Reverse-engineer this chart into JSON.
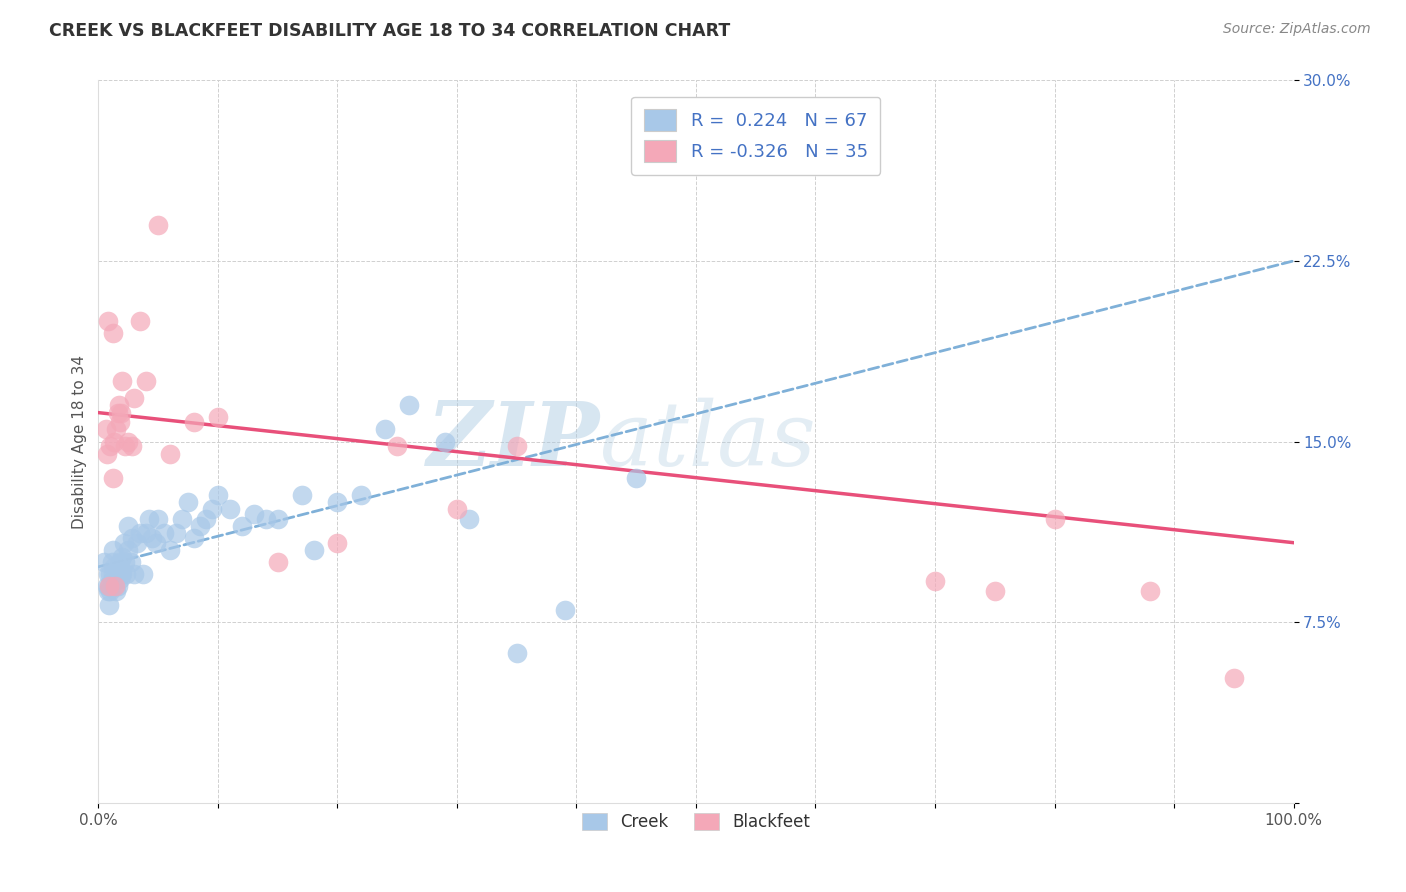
{
  "title": "CREEK VS BLACKFEET DISABILITY AGE 18 TO 34 CORRELATION CHART",
  "source": "Source: ZipAtlas.com",
  "ylabel": "Disability Age 18 to 34",
  "xlim": [
    0,
    1.0
  ],
  "ylim": [
    0,
    0.3
  ],
  "xticks": [
    0.0,
    0.1,
    0.2,
    0.3,
    0.4,
    0.5,
    0.6,
    0.7,
    0.8,
    0.9,
    1.0
  ],
  "xticklabels": [
    "0.0%",
    "",
    "",
    "",
    "",
    "",
    "",
    "",
    "",
    "",
    "100.0%"
  ],
  "yticks": [
    0.0,
    0.075,
    0.15,
    0.225,
    0.3
  ],
  "yticklabels": [
    "",
    "7.5%",
    "15.0%",
    "22.5%",
    "30.0%"
  ],
  "creek_color": "#a8c8e8",
  "blackfeet_color": "#f4a8b8",
  "creek_R": 0.224,
  "creek_N": 67,
  "blackfeet_R": -0.326,
  "blackfeet_N": 35,
  "legend_creek_label": "Creek",
  "legend_blackfeet_label": "Blackfeet",
  "watermark_zip": "ZIP",
  "watermark_atlas": "atlas",
  "background_color": "#ffffff",
  "grid_color": "#d0d0d0",
  "creek_line_color": "#7fb0d8",
  "blackfeet_line_color": "#e8507a",
  "title_color": "#333333",
  "source_color": "#888888",
  "ylabel_color": "#555555",
  "ytick_color": "#4472c4",
  "xtick_color": "#555555",
  "legend_label_color": "#4472c4",
  "creek_line_start_y": 0.098,
  "creek_line_end_y": 0.225,
  "blackfeet_line_start_y": 0.162,
  "blackfeet_line_end_y": 0.108,
  "creek_points_x": [
    0.005,
    0.007,
    0.008,
    0.008,
    0.009,
    0.009,
    0.01,
    0.01,
    0.011,
    0.011,
    0.012,
    0.012,
    0.013,
    0.013,
    0.014,
    0.015,
    0.015,
    0.016,
    0.016,
    0.017,
    0.018,
    0.018,
    0.019,
    0.02,
    0.02,
    0.021,
    0.022,
    0.023,
    0.025,
    0.025,
    0.027,
    0.028,
    0.03,
    0.032,
    0.035,
    0.037,
    0.04,
    0.042,
    0.045,
    0.048,
    0.05,
    0.055,
    0.06,
    0.065,
    0.07,
    0.075,
    0.08,
    0.085,
    0.09,
    0.095,
    0.1,
    0.11,
    0.12,
    0.13,
    0.14,
    0.15,
    0.17,
    0.18,
    0.2,
    0.22,
    0.24,
    0.26,
    0.29,
    0.31,
    0.35,
    0.39,
    0.45
  ],
  "creek_points_y": [
    0.1,
    0.09,
    0.088,
    0.095,
    0.082,
    0.09,
    0.088,
    0.095,
    0.092,
    0.1,
    0.095,
    0.105,
    0.093,
    0.098,
    0.092,
    0.088,
    0.095,
    0.09,
    0.096,
    0.098,
    0.093,
    0.1,
    0.095,
    0.095,
    0.102,
    0.108,
    0.1,
    0.095,
    0.105,
    0.115,
    0.1,
    0.11,
    0.095,
    0.108,
    0.112,
    0.095,
    0.112,
    0.118,
    0.11,
    0.108,
    0.118,
    0.112,
    0.105,
    0.112,
    0.118,
    0.125,
    0.11,
    0.115,
    0.118,
    0.122,
    0.128,
    0.122,
    0.115,
    0.12,
    0.118,
    0.118,
    0.128,
    0.105,
    0.125,
    0.128,
    0.155,
    0.165,
    0.15,
    0.118,
    0.062,
    0.08,
    0.135
  ],
  "blackfeet_points_x": [
    0.006,
    0.007,
    0.008,
    0.009,
    0.01,
    0.012,
    0.012,
    0.013,
    0.014,
    0.015,
    0.016,
    0.017,
    0.018,
    0.019,
    0.02,
    0.022,
    0.025,
    0.028,
    0.03,
    0.035,
    0.04,
    0.05,
    0.06,
    0.08,
    0.1,
    0.15,
    0.2,
    0.25,
    0.3,
    0.35,
    0.7,
    0.75,
    0.8,
    0.88,
    0.95
  ],
  "blackfeet_points_y": [
    0.155,
    0.145,
    0.2,
    0.09,
    0.148,
    0.135,
    0.195,
    0.15,
    0.09,
    0.155,
    0.162,
    0.165,
    0.158,
    0.162,
    0.175,
    0.148,
    0.15,
    0.148,
    0.168,
    0.2,
    0.175,
    0.24,
    0.145,
    0.158,
    0.16,
    0.1,
    0.108,
    0.148,
    0.122,
    0.148,
    0.092,
    0.088,
    0.118,
    0.088,
    0.052
  ]
}
